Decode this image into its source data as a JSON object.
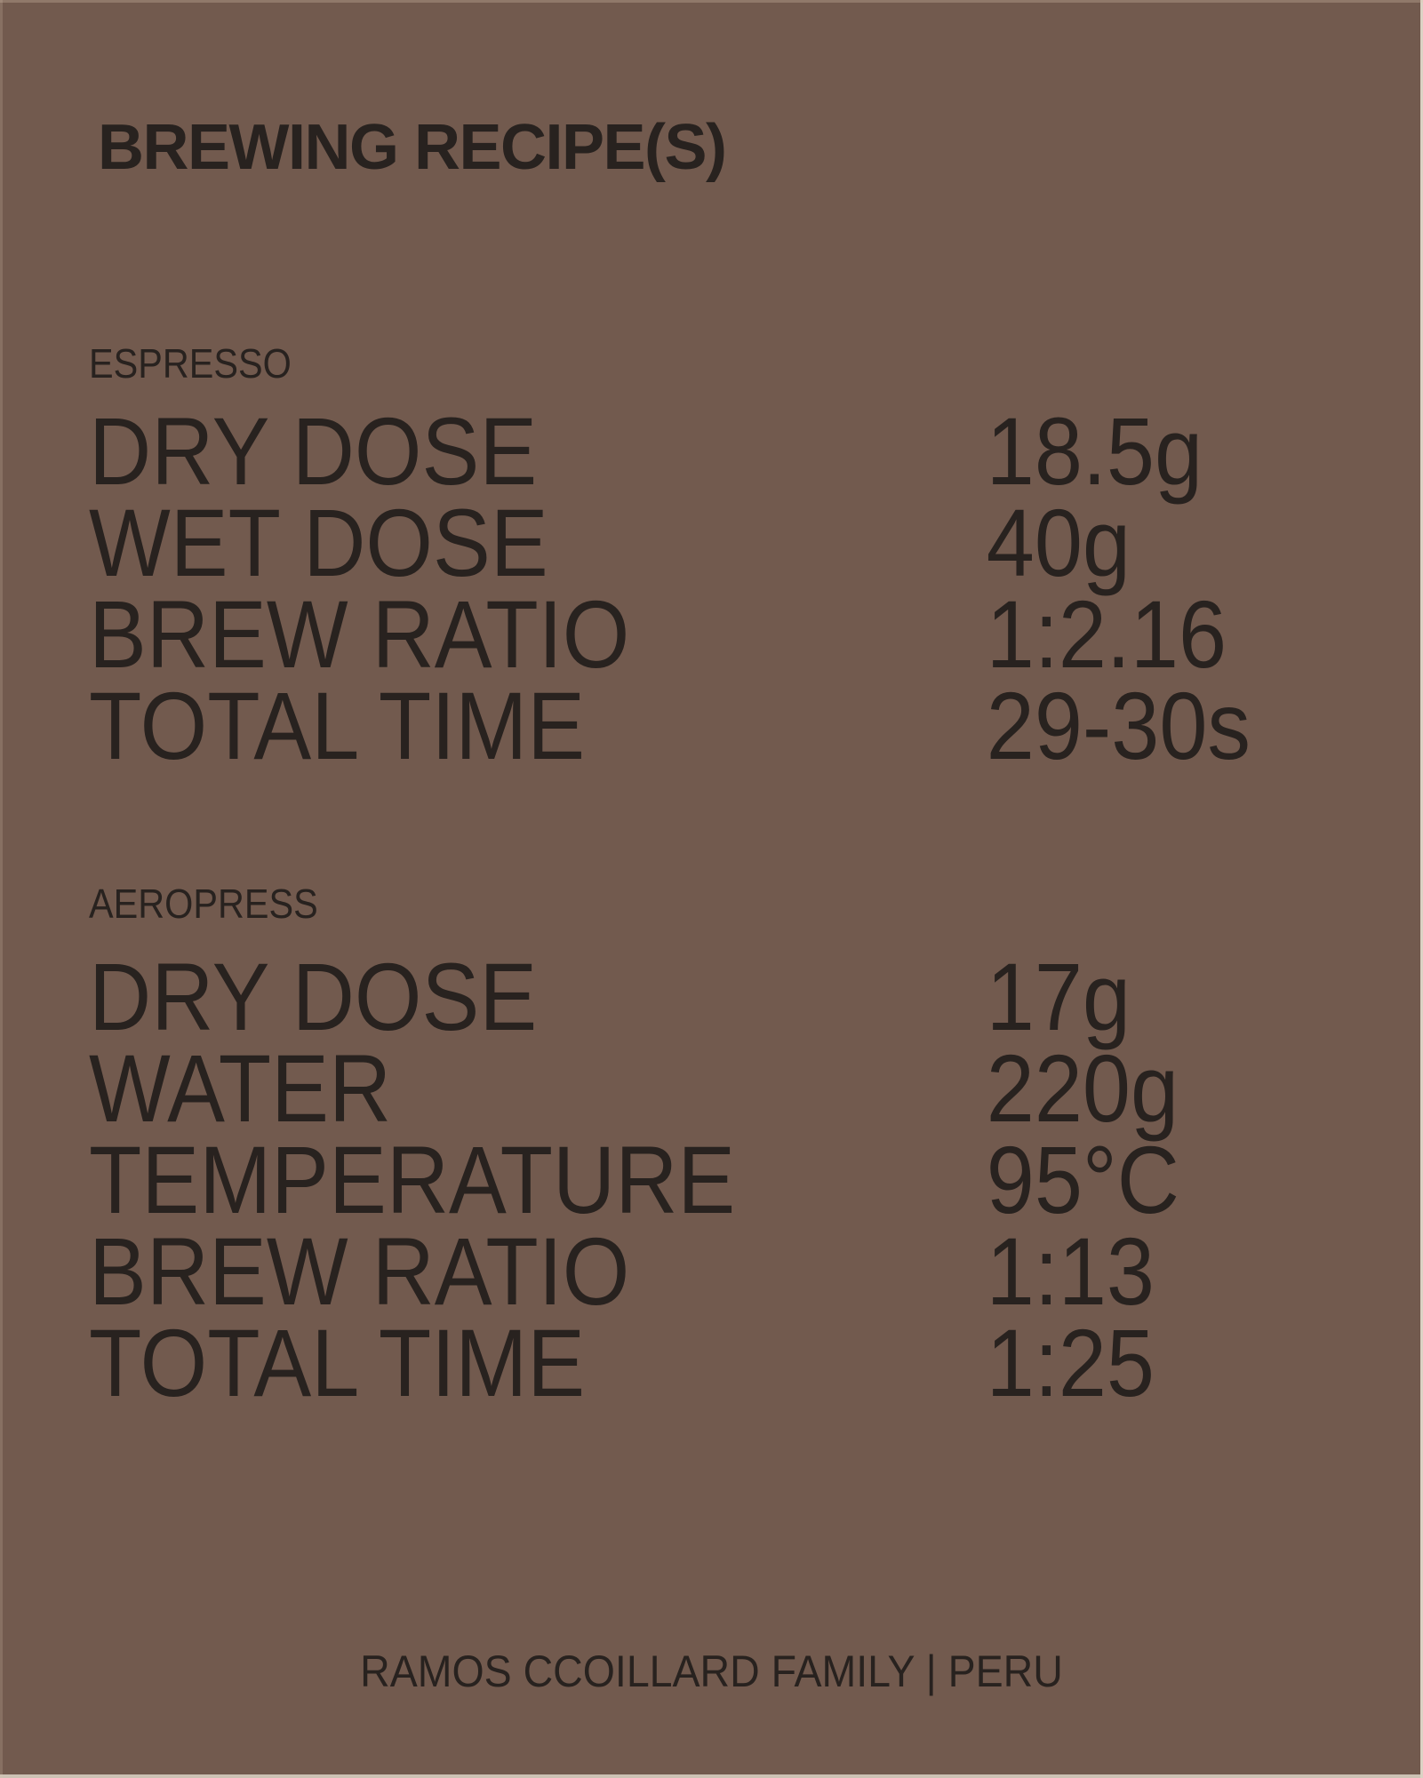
{
  "page": {
    "title": "BREWING RECIPE(S)",
    "footer": "RAMOS CCOILLARD FAMILY | PERU",
    "colors": {
      "background": "#725A4E",
      "text": "#28221F",
      "edge_light": "#DCD2C4"
    }
  },
  "sections": [
    {
      "name": "ESPRESSO",
      "rows": [
        {
          "label": "DRY DOSE",
          "value": "18.5g"
        },
        {
          "label": "WET DOSE",
          "value": "40g"
        },
        {
          "label": "BREW RATIO",
          "value": "1:2.16"
        },
        {
          "label": "TOTAL TIME",
          "value": "29-30s"
        }
      ]
    },
    {
      "name": "AEROPRESS",
      "rows": [
        {
          "label": "DRY DOSE",
          "value": "17g"
        },
        {
          "label": "WATER",
          "value": "220g"
        },
        {
          "label": "TEMPERATURE",
          "value": "95°C"
        },
        {
          "label": "BREW RATIO",
          "value": "1:13"
        },
        {
          "label": "TOTAL TIME",
          "value": "1:25"
        }
      ]
    }
  ]
}
